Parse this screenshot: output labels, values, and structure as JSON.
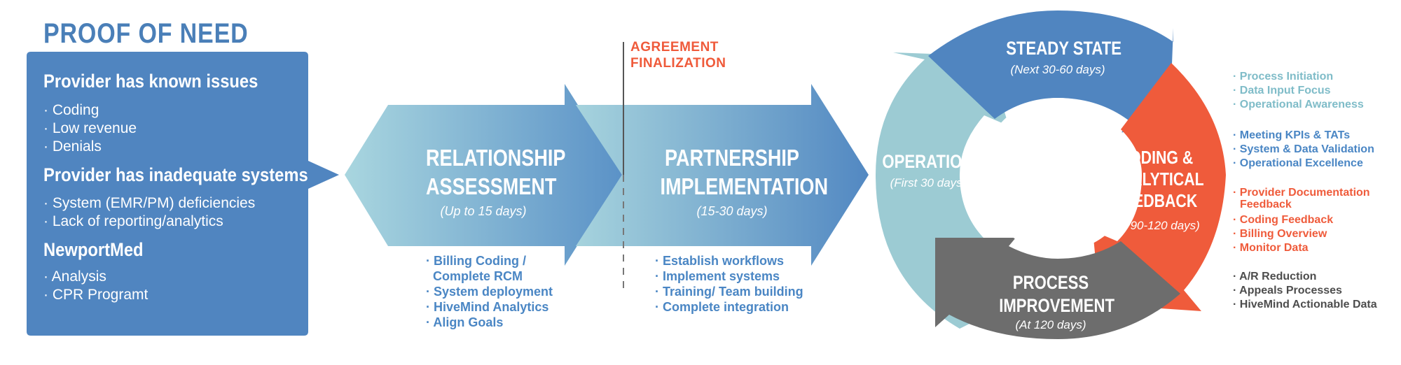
{
  "title": "PROOF OF NEED",
  "proof": {
    "groups": [
      {
        "heading": "Provider has known issues",
        "items": [
          "· Coding",
          "· Low revenue",
          "· Denials"
        ]
      },
      {
        "heading": "Provider has inadequate systems",
        "items": [
          "· System (EMR/PM) deficiencies",
          "· Lack of reporting/analytics"
        ]
      },
      {
        "heading": "NewportMed",
        "items": [
          "· Analysis",
          "· CPR Programt"
        ]
      }
    ]
  },
  "agreement": {
    "line1": "AGREEMENT",
    "line2": "FINALIZATION"
  },
  "stages": [
    {
      "title_line1": "RELATIONSHIP",
      "title_line2": "ASSESSMENT",
      "duration": "(Up to 15 days)",
      "bullets": [
        "· Billing Coding /",
        "Complete RCM",
        "· System deployment",
        "· HiveMind Analytics",
        "· Align Goals"
      ]
    },
    {
      "title_line1": "PARTNERSHIP",
      "title_line2": "IMPLEMENTATION",
      "duration": "(15-30 days)",
      "bullets": [
        "· Establish workflows",
        "· Implement systems",
        "· Training/ Team building",
        "· Complete integration"
      ]
    }
  ],
  "cycle": {
    "operations": {
      "title": "OPERATIONS",
      "sub": "(First 30 days)"
    },
    "steady": {
      "title": "STEADY STATE",
      "sub": "(Next 30-60 days)"
    },
    "coding": {
      "line1": "CODING &",
      "line2": "ANALYTICAL",
      "line3": "FEEDBACK",
      "sub": "(At 90-120 days)"
    },
    "process": {
      "line1": "PROCESS",
      "line2": "IMPROVEMENT",
      "sub": "(At 120 days)"
    }
  },
  "right_lists": [
    {
      "items": [
        "· Process Initiation",
        "· Data Input Focus",
        "· Operational Awareness"
      ]
    },
    {
      "items": [
        "· Meeting KPIs & TATs",
        "· System & Data Validation",
        "· Operational Excellence"
      ]
    },
    {
      "items": [
        "· Provider Documentation",
        "Feedback",
        "· Coding Feedback",
        "· Billing Overview",
        "· Monitor Data"
      ]
    },
    {
      "items": [
        "· A/R Reduction",
        "· Appeals Processes",
        "· HiveMind Actionable Data"
      ]
    }
  ],
  "colors": {
    "blue": "#5085c0",
    "light_teal": "#9ccbd3",
    "orange": "#ef5b3b",
    "gray": "#6d6d6d",
    "text_blue": "#4a86c4",
    "text_teal": "#7fbcc8",
    "text_dark": "#4d4d4d"
  }
}
